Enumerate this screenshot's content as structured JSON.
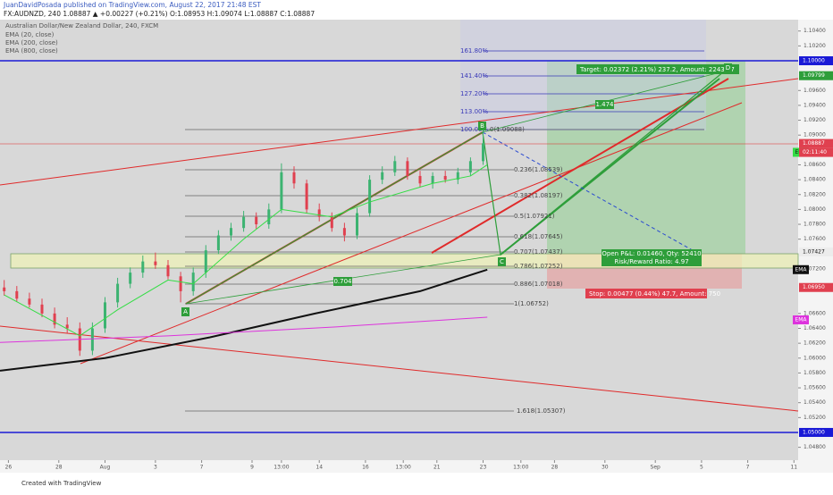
{
  "chart_data": {
    "type": "candlestick",
    "header": {
      "publisher": "JuanDavidPosada published on TradingView.com, August 22, 2017 21:48 EST",
      "quote": "FX:AUDNZD, 240  1.08887 ▲ +0.00227 (+0.21%) O:1.08953 H:1.09074 L:1.08887 C:1.08887"
    },
    "title": "Australian Dollar/New Zealand Dollar, 240, FXCM",
    "footer": "Created with TradingView",
    "xlim": [
      0,
      190
    ],
    "ylim": [
      1.04627,
      1.10553
    ],
    "yticks": [
      {
        "value": 1.104,
        "label": "1.10400"
      },
      {
        "value": 1.102,
        "label": "1.10200"
      },
      {
        "value": 1.096,
        "label": "1.09600"
      },
      {
        "value": 1.094,
        "label": "1.09400"
      },
      {
        "value": 1.092,
        "label": "1.09200"
      },
      {
        "value": 1.09,
        "label": "1.09000"
      },
      {
        "value": 1.086,
        "label": "1.08600"
      },
      {
        "value": 1.084,
        "label": "1.08400"
      },
      {
        "value": 1.082,
        "label": "1.08200"
      },
      {
        "value": 1.08,
        "label": "1.08000"
      },
      {
        "value": 1.078,
        "label": "1.07800"
      },
      {
        "value": 1.076,
        "label": "1.07600"
      },
      {
        "value": 1.072,
        "label": "1.07200"
      },
      {
        "value": 1.066,
        "label": "1.06600"
      },
      {
        "value": 1.064,
        "label": "1.06400"
      },
      {
        "value": 1.062,
        "label": "1.06200"
      },
      {
        "value": 1.06,
        "label": "1.06000"
      },
      {
        "value": 1.058,
        "label": "1.05800"
      },
      {
        "value": 1.056,
        "label": "1.05600"
      },
      {
        "value": 1.054,
        "label": "1.05400"
      },
      {
        "value": 1.052,
        "label": "1.05200"
      },
      {
        "value": 1.048,
        "label": "1.04800"
      }
    ],
    "xticks": [
      {
        "value": 2,
        "label": "26"
      },
      {
        "value": 14,
        "label": "28"
      },
      {
        "value": 25,
        "label": "Aug"
      },
      {
        "value": 37,
        "label": "3"
      },
      {
        "value": 48,
        "label": "7"
      },
      {
        "value": 60,
        "label": "9"
      },
      {
        "value": 67,
        "label": "13:00"
      },
      {
        "value": 76,
        "label": "14"
      },
      {
        "value": 87,
        "label": "16"
      },
      {
        "value": 96,
        "label": "13:00"
      },
      {
        "value": 104,
        "label": "21"
      },
      {
        "value": 115,
        "label": "23"
      },
      {
        "value": 124,
        "label": "13:00"
      },
      {
        "value": 132,
        "label": "28"
      },
      {
        "value": 144,
        "label": "30"
      },
      {
        "value": 156,
        "label": "Sep"
      },
      {
        "value": 167,
        "label": "5"
      },
      {
        "value": 178,
        "label": "7"
      },
      {
        "value": 189,
        "label": "11"
      }
    ],
    "candles": {
      "up_color": "#3cb371",
      "down_color": "#e0404f",
      "x": [
        1,
        4,
        7,
        10,
        13,
        16,
        19,
        22,
        25,
        28,
        31,
        34,
        37,
        40,
        43,
        46,
        49,
        52,
        55,
        58,
        61,
        64,
        67,
        70,
        73,
        76,
        79,
        82,
        85,
        88,
        91,
        94,
        97,
        100,
        103,
        106,
        109,
        112,
        115
      ],
      "open": [
        1.0695,
        1.069,
        1.068,
        1.0672,
        1.066,
        1.0645,
        1.064,
        1.061,
        1.064,
        1.0675,
        1.07,
        1.0715,
        1.073,
        1.0725,
        1.071,
        1.069,
        1.0715,
        1.0745,
        1.0765,
        1.0775,
        1.079,
        1.078,
        1.08,
        1.085,
        1.0835,
        1.08,
        1.079,
        1.0775,
        1.0765,
        1.0795,
        1.084,
        1.085,
        1.0865,
        1.0845,
        1.0835,
        1.0845,
        1.084,
        1.085,
        1.0865
      ],
      "high": [
        1.0705,
        1.0697,
        1.0688,
        1.068,
        1.0668,
        1.0655,
        1.0648,
        1.0648,
        1.0682,
        1.0708,
        1.0722,
        1.0738,
        1.0742,
        1.0732,
        1.0716,
        1.0722,
        1.0752,
        1.0772,
        1.0782,
        1.0798,
        1.0796,
        1.0808,
        1.0862,
        1.0858,
        1.084,
        1.0808,
        1.0796,
        1.0782,
        1.0802,
        1.0846,
        1.0858,
        1.0872,
        1.087,
        1.0852,
        1.085,
        1.0852,
        1.0856,
        1.087,
        1.0907
      ],
      "low": [
        1.0684,
        1.0676,
        1.0668,
        1.0655,
        1.064,
        1.0634,
        1.0603,
        1.0604,
        1.0634,
        1.0668,
        1.0694,
        1.0708,
        1.072,
        1.0706,
        1.0675,
        1.0684,
        1.0708,
        1.074,
        1.0758,
        1.077,
        1.0774,
        1.0774,
        1.0795,
        1.0828,
        1.0795,
        1.0784,
        1.077,
        1.0757,
        1.076,
        1.079,
        1.0834,
        1.0845,
        1.084,
        1.083,
        1.0828,
        1.0836,
        1.0834,
        1.0845,
        1.086
      ],
      "close": [
        1.069,
        1.068,
        1.0672,
        1.066,
        1.0645,
        1.064,
        1.061,
        1.064,
        1.0675,
        1.07,
        1.0715,
        1.073,
        1.0725,
        1.071,
        1.069,
        1.0715,
        1.0745,
        1.0765,
        1.0775,
        1.079,
        1.078,
        1.08,
        1.085,
        1.0835,
        1.08,
        1.079,
        1.0775,
        1.0765,
        1.0795,
        1.084,
        1.085,
        1.0865,
        1.0845,
        1.0835,
        1.0845,
        1.084,
        1.085,
        1.0865,
        1.0889
      ]
    },
    "series": [
      {
        "name": "EMA (20, close)",
        "color": "#33dd44",
        "x": [
          1,
          19,
          28,
          40,
          46,
          58,
          67,
          79,
          88,
          103,
          112,
          116
        ],
        "values": [
          1.0685,
          1.063,
          1.0665,
          1.0705,
          1.07,
          1.076,
          1.08,
          1.079,
          1.081,
          1.0835,
          1.0845,
          1.086
        ]
      },
      {
        "name": "EMA (200, close)",
        "color": "#111111",
        "x": [
          0,
          25,
          50,
          75,
          100,
          116
        ],
        "values": [
          1.0583,
          1.06,
          1.0628,
          1.066,
          1.069,
          1.0719
        ]
      },
      {
        "name": "EMA (800, close)",
        "color": "#dd33dd",
        "x": [
          0,
          40,
          80,
          116
        ],
        "values": [
          1.0621,
          1.063,
          1.0642,
          1.0655
        ]
      }
    ],
    "annotations": {
      "ema_tag": "EMA",
      "countdown": "02:11:40",
      "price_tags": [
        {
          "value": 1.1,
          "label": "1.10000",
          "color": "#1a1ad6"
        },
        {
          "value": 1.09799,
          "label": "1.09799",
          "color": "#2e9e3a"
        },
        {
          "value": 1.08887,
          "label": "1.08887",
          "color": "#e0404f"
        },
        {
          "value": 1.07427,
          "label": "1.07427",
          "color": "#ececec"
        },
        {
          "value": 1.0695,
          "label": "1.06950",
          "color": "#e0404f"
        },
        {
          "value": 1.05,
          "label": "1.05000",
          "color": "#1a1ad6"
        }
      ],
      "fib_ext": [
        "161.80%",
        "141.40%",
        "127.20%",
        "113.00%",
        "100.00%"
      ],
      "fib_levels": [
        "0(1.09088)",
        "0.236(1.08539)",
        "0.382(1.08197)",
        "0.5(1.07921)",
        "0.618(1.07645)",
        "0.707(1.07437)",
        "0.786(1.07252)",
        "0.886(1.07018)",
        "1(1.06752)",
        "1.618(1.05307)"
      ],
      "target": "Target: 0.02372 (2.21%) 237.2, Amount: 2243.17",
      "open_pl": "Open P&L: 0.01460, Qty: 52410",
      "risk_reward": "Risk/Reward Ratio: 4.97",
      "stop": "Stop: 0.00477 (0.44%) 47.7, Amount: 750",
      "point_a": "A",
      "point_b": "B",
      "point_c": "C",
      "point_d": "D",
      "ratio_1": "1.474",
      "ratio_2": "0.704"
    }
  }
}
